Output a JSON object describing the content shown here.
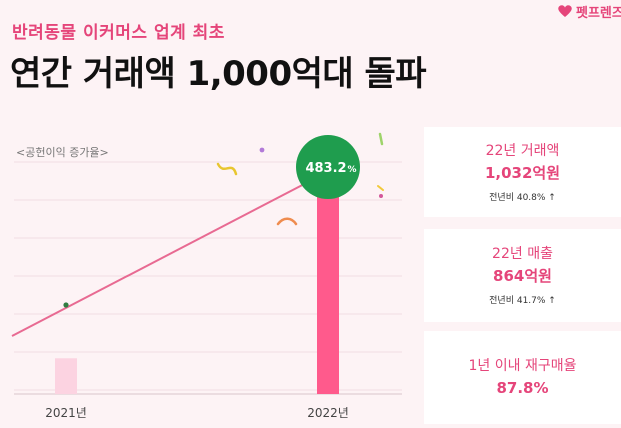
{
  "header": {
    "subtitle": "반려동물 이커머스 업계 최초",
    "title": "연간 거래액 1,000억대 돌파",
    "logo_text": "펫프렌즈"
  },
  "chart_data": {
    "type": "bar",
    "label": "<공헌이익 증가율>",
    "categories": [
      "2021년",
      "2022년"
    ],
    "series": [
      {
        "values": [
          1,
          5.832
        ],
        "colors": [
          "#fcd3e1",
          "#ff5a8c"
        ]
      }
    ],
    "growth_badge": "483.2",
    "growth_badge_unit": "%",
    "badge_color": "#1f9d4e",
    "line_color": "#e86a92",
    "grid": true,
    "ylim": [
      0,
      7
    ]
  },
  "cards": [
    {
      "label": "22년 거래액",
      "value": "1,032억원",
      "sub": "전년비 40.8% ↑"
    },
    {
      "label": "22년 매출",
      "value": "864억원",
      "sub": "전년비 41.7% ↑"
    },
    {
      "label": "1년 이내 재구매율",
      "value": "87.8%",
      "sub": ""
    }
  ],
  "colors": {
    "accent": "#e5457a",
    "background": "#fdf3f5"
  }
}
